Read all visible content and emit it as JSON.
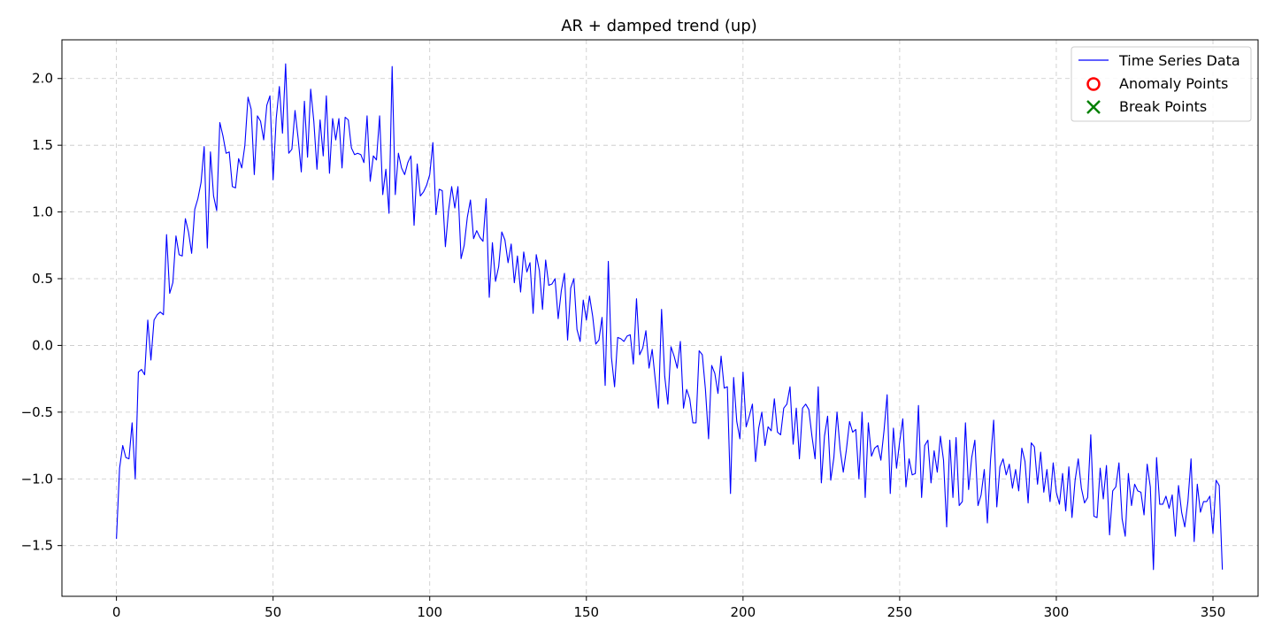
{
  "chart_data": {
    "type": "line",
    "title": "AR + damped trend (up)",
    "xlabel": "",
    "ylabel": "",
    "xlim": [
      -17.4,
      364.4
    ],
    "ylim": [
      -1.88,
      2.29
    ],
    "x_ticks": [
      0,
      50,
      100,
      150,
      200,
      250,
      300,
      350
    ],
    "y_ticks": [
      -1.5,
      -1.0,
      -0.5,
      0.0,
      0.5,
      1.0,
      1.5,
      2.0
    ],
    "y_tick_labels": [
      "−1.5",
      "−1.0",
      "−0.5",
      "0.0",
      "0.5",
      "1.0",
      "1.5",
      "2.0"
    ],
    "grid": true,
    "legend_position": "top-right",
    "legend": [
      {
        "label": "Time Series Data",
        "marker": "line",
        "color": "#0000ff"
      },
      {
        "label": "Anomaly Points",
        "marker": "circle",
        "color": "#ff0000"
      },
      {
        "label": "Break Points",
        "marker": "x",
        "color": "#008000"
      }
    ],
    "series": [
      {
        "name": "Time Series Data",
        "color": "#0000ff",
        "x_start": 0,
        "x_step": 1,
        "values": [
          -1.45,
          -0.92,
          -0.75,
          -0.84,
          -0.85,
          -0.58,
          -1.0,
          -0.2,
          -0.18,
          -0.22,
          0.19,
          -0.11,
          0.19,
          0.23,
          0.25,
          0.23,
          0.83,
          0.39,
          0.47,
          0.82,
          0.68,
          0.67,
          0.95,
          0.85,
          0.69,
          1.02,
          1.1,
          1.22,
          1.49,
          0.73,
          1.45,
          1.12,
          1.01,
          1.67,
          1.57,
          1.44,
          1.45,
          1.19,
          1.18,
          1.4,
          1.33,
          1.5,
          1.86,
          1.77,
          1.28,
          1.72,
          1.68,
          1.54,
          1.8,
          1.87,
          1.24,
          1.7,
          1.94,
          1.59,
          2.11,
          1.44,
          1.47,
          1.76,
          1.55,
          1.3,
          1.83,
          1.41,
          1.92,
          1.68,
          1.32,
          1.69,
          1.42,
          1.87,
          1.29,
          1.7,
          1.54,
          1.7,
          1.33,
          1.71,
          1.69,
          1.48,
          1.43,
          1.44,
          1.43,
          1.37,
          1.72,
          1.23,
          1.42,
          1.39,
          1.72,
          1.13,
          1.32,
          0.99,
          2.09,
          1.13,
          1.44,
          1.33,
          1.28,
          1.37,
          1.42,
          0.9,
          1.36,
          1.12,
          1.15,
          1.2,
          1.28,
          1.52,
          0.98,
          1.17,
          1.16,
          0.74,
          1.01,
          1.19,
          1.03,
          1.19,
          0.65,
          0.75,
          0.96,
          1.09,
          0.8,
          0.86,
          0.81,
          0.78,
          1.1,
          0.36,
          0.77,
          0.48,
          0.59,
          0.85,
          0.79,
          0.62,
          0.76,
          0.47,
          0.67,
          0.4,
          0.7,
          0.55,
          0.62,
          0.24,
          0.68,
          0.56,
          0.27,
          0.64,
          0.45,
          0.46,
          0.5,
          0.2,
          0.41,
          0.54,
          0.04,
          0.43,
          0.5,
          0.12,
          0.03,
          0.34,
          0.19,
          0.37,
          0.22,
          0.01,
          0.04,
          0.21,
          -0.3,
          0.63,
          -0.09,
          -0.31,
          0.06,
          0.05,
          0.03,
          0.07,
          0.08,
          -0.14,
          0.35,
          -0.07,
          -0.02,
          0.11,
          -0.17,
          -0.03,
          -0.26,
          -0.47,
          0.27,
          -0.23,
          -0.44,
          -0.01,
          -0.08,
          -0.17,
          0.03,
          -0.47,
          -0.33,
          -0.4,
          -0.58,
          -0.58,
          -0.04,
          -0.07,
          -0.33,
          -0.7,
          -0.15,
          -0.21,
          -0.36,
          -0.08,
          -0.32,
          -0.31,
          -1.11,
          -0.24,
          -0.57,
          -0.7,
          -0.2,
          -0.61,
          -0.53,
          -0.44,
          -0.87,
          -0.62,
          -0.5,
          -0.75,
          -0.61,
          -0.64,
          -0.4,
          -0.65,
          -0.67,
          -0.47,
          -0.44,
          -0.31,
          -0.74,
          -0.47,
          -0.85,
          -0.47,
          -0.44,
          -0.48,
          -0.68,
          -0.85,
          -0.31,
          -1.03,
          -0.68,
          -0.53,
          -1.01,
          -0.84,
          -0.5,
          -0.78,
          -0.95,
          -0.78,
          -0.57,
          -0.65,
          -0.63,
          -1.0,
          -0.5,
          -1.14,
          -0.58,
          -0.83,
          -0.77,
          -0.75,
          -0.86,
          -0.64,
          -0.37,
          -1.11,
          -0.62,
          -0.92,
          -0.72,
          -0.55,
          -1.06,
          -0.85,
          -0.97,
          -0.96,
          -0.45,
          -1.14,
          -0.75,
          -0.71,
          -1.03,
          -0.79,
          -0.95,
          -0.68,
          -0.86,
          -1.36,
          -0.71,
          -1.14,
          -0.69,
          -1.2,
          -1.17,
          -0.58,
          -1.08,
          -0.84,
          -0.71,
          -1.2,
          -1.12,
          -0.93,
          -1.33,
          -0.86,
          -0.56,
          -1.21,
          -0.91,
          -0.85,
          -0.97,
          -0.89,
          -1.07,
          -0.93,
          -1.09,
          -0.77,
          -0.87,
          -1.18,
          -0.73,
          -0.76,
          -1.04,
          -0.8,
          -1.1,
          -0.93,
          -1.17,
          -0.88,
          -1.1,
          -1.19,
          -0.96,
          -1.24,
          -0.91,
          -1.29,
          -1.01,
          -0.85,
          -1.07,
          -1.18,
          -1.14,
          -0.67,
          -1.28,
          -1.29,
          -0.92,
          -1.15,
          -0.9,
          -1.42,
          -1.09,
          -1.06,
          -0.88,
          -1.3,
          -1.43,
          -0.96,
          -1.2,
          -1.04,
          -1.09,
          -1.1,
          -1.27,
          -0.89,
          -1.06,
          -1.68,
          -0.84,
          -1.19,
          -1.19,
          -1.13,
          -1.22,
          -1.12,
          -1.43,
          -1.05,
          -1.25,
          -1.36,
          -1.17,
          -0.85,
          -1.47,
          -1.04,
          -1.25,
          -1.17,
          -1.17,
          -1.13,
          -1.41,
          -1.01,
          -1.05,
          -1.68
        ]
      }
    ]
  }
}
